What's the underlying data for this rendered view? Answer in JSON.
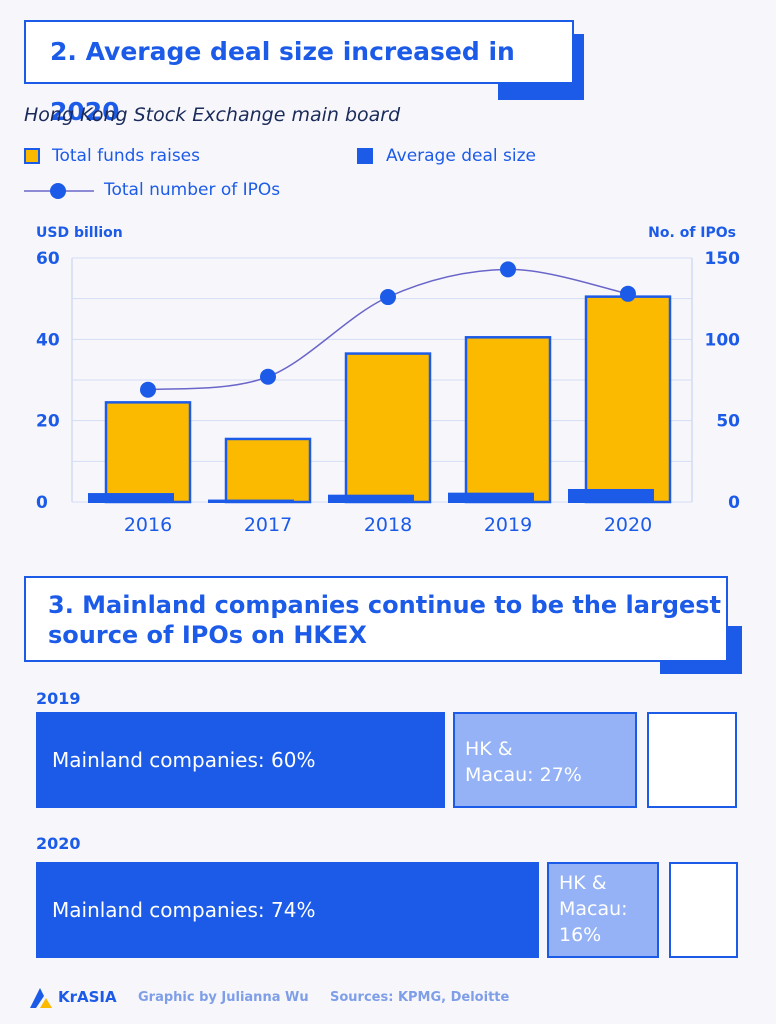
{
  "section1": {
    "title": "2. Average deal size increased in 2020",
    "subtitle": "Hong Kong Stock Exchange main board",
    "legend": {
      "funds": "Total funds raises",
      "avg": "Average deal size",
      "ipos": "Total number of IPOs"
    }
  },
  "chart_data": {
    "type": "bar",
    "categories": [
      "2016",
      "2017",
      "2018",
      "2019",
      "2020"
    ],
    "series": [
      {
        "name": "Total funds raises",
        "type": "bar",
        "axis": "left",
        "values": [
          24.5,
          15.5,
          36.5,
          40.5,
          50.5
        ]
      },
      {
        "name": "Average deal size",
        "type": "bar",
        "axis": "left",
        "values": [
          2.2,
          0.6,
          1.8,
          2.3,
          3.2
        ]
      },
      {
        "name": "Total number of IPOs",
        "type": "line",
        "axis": "right",
        "values": [
          69,
          77,
          126,
          143,
          128
        ]
      }
    ],
    "ylabel": "USD billion",
    "y2label": "No. of IPOs",
    "ylim": [
      0,
      60
    ],
    "y2lim": [
      0,
      150
    ],
    "yticks": [
      0,
      20,
      40,
      60
    ],
    "y2ticks": [
      0,
      50,
      100,
      150
    ],
    "grid": true,
    "colors": {
      "funds": "#fbb900",
      "avg": "#1c5be8",
      "ipos": "#1c5be8",
      "line": "#6a66c9",
      "grid": "#d4dcf5"
    }
  },
  "section2": {
    "title_line1": "3. Mainland companies continue to be the largest",
    "title_line2": "source of IPOs on HKEX",
    "rows": [
      {
        "year": "2019",
        "mainland_label": "Mainland companies: 60%",
        "mainland_pct": 60,
        "hk_label_1": "HK &",
        "hk_label_2": "Macau: 27%",
        "hk_label_3": "",
        "hk_pct": 27
      },
      {
        "year": "2020",
        "mainland_label": "Mainland companies: 74%",
        "mainland_pct": 74,
        "hk_label_1": "HK &",
        "hk_label_2": "Macau:",
        "hk_label_3": "16%",
        "hk_pct": 16
      }
    ]
  },
  "footer": {
    "logo": "KrASIA",
    "credit": "Graphic by Julianna Wu",
    "sources": "Sources: KPMG, Deloitte"
  }
}
